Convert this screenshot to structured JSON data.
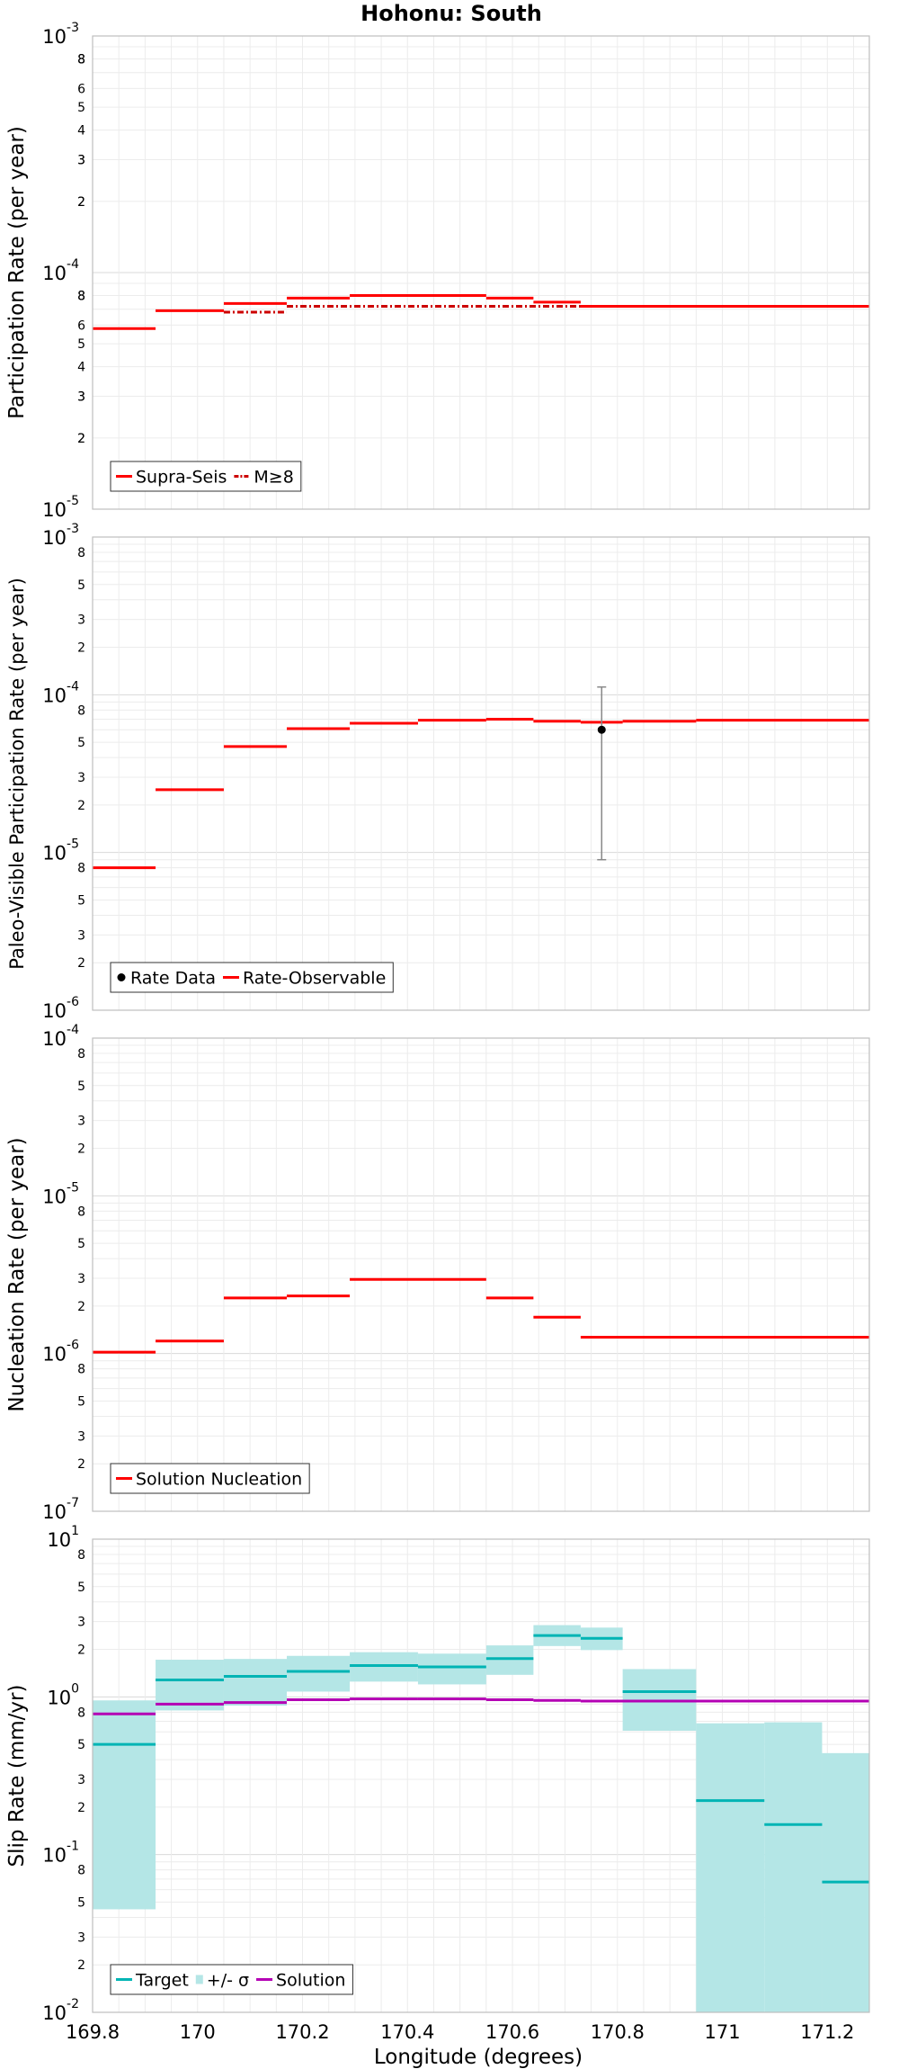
{
  "title": "Hohonu: South",
  "xlabel": "Longitude (degrees)",
  "x_ticks": [
    169.8,
    170,
    170.2,
    170.4,
    170.6,
    170.8,
    171,
    171.2
  ],
  "x_tick_labels": [
    "169.8",
    "170",
    "170.2",
    "170.4",
    "170.6",
    "170.8",
    "171",
    "171.2"
  ],
  "chart_data": [
    {
      "type": "line",
      "ylabel": "Participation Rate (per year)",
      "yscale": "log",
      "ylim": [
        1e-05,
        0.001
      ],
      "xlim": [
        169.8,
        171.28
      ],
      "grid": true,
      "legend_position": "bottom-left",
      "series": [
        {
          "name": "Supra-Seis",
          "color": "#ff0000",
          "style": "solid",
          "segments": [
            [
              169.8,
              169.92,
              5.8e-05
            ],
            [
              169.92,
              170.05,
              6.9e-05
            ],
            [
              170.05,
              170.17,
              7.4e-05
            ],
            [
              170.17,
              170.29,
              7.8e-05
            ],
            [
              170.29,
              170.55,
              8e-05
            ],
            [
              170.55,
              170.64,
              7.8e-05
            ],
            [
              170.64,
              170.73,
              7.5e-05
            ],
            [
              170.73,
              171.28,
              7.2e-05
            ]
          ]
        },
        {
          "name": "M≥8",
          "color": "#cc0000",
          "style": "dash-dot",
          "segments": [
            [
              170.05,
              170.17,
              6.8e-05
            ],
            [
              170.17,
              170.73,
              7.2e-05
            ]
          ]
        }
      ]
    },
    {
      "type": "line",
      "ylabel": "Paleo-Visible Participation Rate (per year)",
      "yscale": "log",
      "ylim": [
        1e-06,
        0.001
      ],
      "xlim": [
        169.8,
        171.28
      ],
      "grid": true,
      "legend_position": "bottom-left",
      "series": [
        {
          "name": "Rate Data",
          "color": "#000000",
          "style": "point",
          "points": [
            {
              "x": 170.77,
              "y": 6e-05,
              "lower": 9e-06,
              "upper": 0.000112
            }
          ]
        },
        {
          "name": "Rate-Observable",
          "color": "#ff0000",
          "style": "solid",
          "segments": [
            [
              169.8,
              169.92,
              8e-06
            ],
            [
              169.92,
              170.05,
              2.5e-05
            ],
            [
              170.05,
              170.17,
              4.7e-05
            ],
            [
              170.17,
              170.29,
              6.1e-05
            ],
            [
              170.29,
              170.42,
              6.6e-05
            ],
            [
              170.42,
              170.55,
              6.9e-05
            ],
            [
              170.55,
              170.64,
              7e-05
            ],
            [
              170.64,
              170.73,
              6.8e-05
            ],
            [
              170.73,
              170.81,
              6.7e-05
            ],
            [
              170.81,
              170.95,
              6.8e-05
            ],
            [
              170.95,
              171.28,
              6.9e-05
            ]
          ]
        }
      ]
    },
    {
      "type": "line",
      "ylabel": "Nucleation Rate (per year)",
      "yscale": "log",
      "ylim": [
        1e-07,
        0.0001
      ],
      "xlim": [
        169.8,
        171.28
      ],
      "grid": true,
      "legend_position": "bottom-left",
      "series": [
        {
          "name": "Solution Nucleation",
          "color": "#ff0000",
          "style": "solid",
          "segments": [
            [
              169.8,
              169.92,
              1.02e-06
            ],
            [
              169.92,
              170.05,
              1.2e-06
            ],
            [
              170.05,
              170.17,
              2.25e-06
            ],
            [
              170.17,
              170.29,
              2.32e-06
            ],
            [
              170.29,
              170.55,
              2.95e-06
            ],
            [
              170.55,
              170.64,
              2.25e-06
            ],
            [
              170.64,
              170.73,
              1.7e-06
            ],
            [
              170.73,
              171.28,
              1.27e-06
            ]
          ]
        }
      ]
    },
    {
      "type": "line",
      "ylabel": "Slip Rate (mm/yr)",
      "yscale": "log",
      "ylim": [
        0.01,
        10
      ],
      "xlim": [
        169.8,
        171.28
      ],
      "grid": true,
      "legend_position": "bottom-left",
      "series": [
        {
          "name": "Target",
          "color": "#00b4b4",
          "style": "solid",
          "segments": [
            [
              169.8,
              169.92,
              0.5
            ],
            [
              169.92,
              170.05,
              1.28
            ],
            [
              170.05,
              170.17,
              1.35
            ],
            [
              170.17,
              170.29,
              1.45
            ],
            [
              170.29,
              170.42,
              1.58
            ],
            [
              170.42,
              170.55,
              1.55
            ],
            [
              170.55,
              170.64,
              1.75
            ],
            [
              170.64,
              170.73,
              2.45
            ],
            [
              170.73,
              170.81,
              2.35
            ],
            [
              170.81,
              170.95,
              1.08
            ],
            [
              170.95,
              171.08,
              0.22
            ],
            [
              171.08,
              171.19,
              0.155
            ],
            [
              171.19,
              171.28,
              0.067
            ]
          ]
        },
        {
          "name": "+/- σ",
          "color": "#b4e6e6",
          "style": "band",
          "segments": [
            [
              169.8,
              169.92,
              0.045,
              0.95
            ],
            [
              169.92,
              170.05,
              0.82,
              1.72
            ],
            [
              170.05,
              170.17,
              0.88,
              1.74
            ],
            [
              170.17,
              170.29,
              1.08,
              1.82
            ],
            [
              170.29,
              170.42,
              1.25,
              1.92
            ],
            [
              170.42,
              170.55,
              1.2,
              1.88
            ],
            [
              170.55,
              170.64,
              1.38,
              2.12
            ],
            [
              170.64,
              170.73,
              2.1,
              2.85
            ],
            [
              170.73,
              170.81,
              1.98,
              2.75
            ],
            [
              170.81,
              170.95,
              0.61,
              1.5
            ],
            [
              170.95,
              171.08,
              0.01,
              0.68
            ],
            [
              171.08,
              171.19,
              0.01,
              0.69
            ],
            [
              171.19,
              171.28,
              0.01,
              0.44
            ]
          ]
        },
        {
          "name": "Solution",
          "color": "#b400b4",
          "style": "solid",
          "segments": [
            [
              169.8,
              169.92,
              0.78
            ],
            [
              169.92,
              170.05,
              0.9
            ],
            [
              170.05,
              170.17,
              0.92
            ],
            [
              170.17,
              170.29,
              0.96
            ],
            [
              170.29,
              170.42,
              0.97
            ],
            [
              170.42,
              170.55,
              0.97
            ],
            [
              170.55,
              170.64,
              0.96
            ],
            [
              170.64,
              170.73,
              0.95
            ],
            [
              170.73,
              171.28,
              0.94
            ]
          ]
        }
      ]
    }
  ]
}
